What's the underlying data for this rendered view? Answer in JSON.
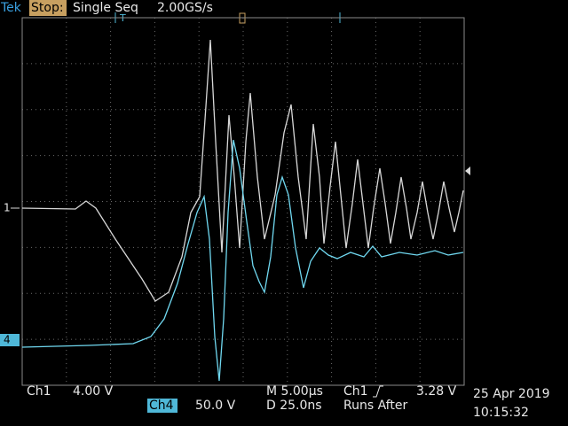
{
  "header": {
    "brand": "Tek",
    "status": "Stop:",
    "mode": "Single Seq",
    "sample_rate": "2.00GS/s",
    "trigger_marker": "T"
  },
  "markers": {
    "ch1": "1",
    "ch4": "4"
  },
  "footer": {
    "ch1_label": "Ch1",
    "ch1_scale": "4.00 V",
    "ch4_label": "Ch4",
    "ch4_scale": "50.0 V",
    "timebase": "M 5.00µs",
    "trigger_source": "Ch1",
    "trigger_level": "3.28 V",
    "delay": "D 25.0ns",
    "run_state": "Runs After",
    "date": "25 Apr 2019",
    "time": "10:15:32"
  }
}
